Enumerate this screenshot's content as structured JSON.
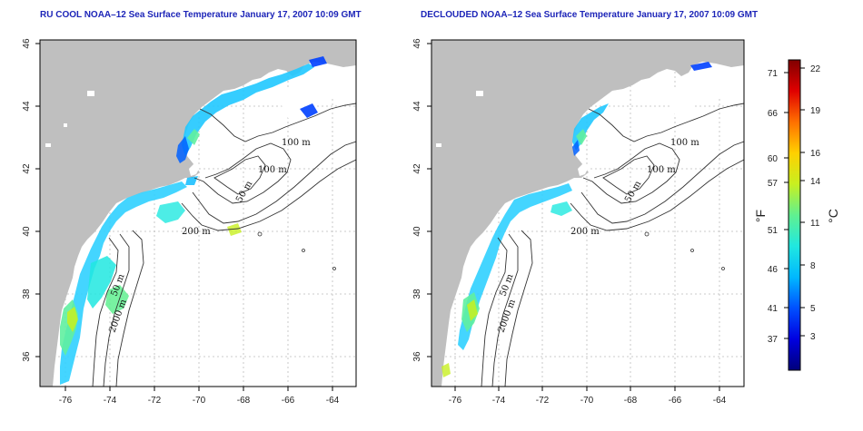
{
  "panels": [
    {
      "title": "RU COOL NOAA–12 Sea Surface Temperature January 17, 2007 10:09 GMT",
      "isobaths": [
        "100 m",
        "100 m",
        "50 m",
        "200 m",
        "50 m",
        "2000 m"
      ]
    },
    {
      "title": "DECLOUDED NOAA–12 Sea Surface Temperature January 17, 2007 10:09 GMT",
      "isobaths": [
        "100 m",
        "100 m",
        "50 m",
        "200 m",
        "50 m",
        "2000 m"
      ]
    }
  ],
  "axes": {
    "x_ticks": [
      "-76",
      "-74",
      "-72",
      "-70",
      "-68",
      "-66",
      "-64"
    ],
    "y_ticks": [
      "46",
      "44",
      "42",
      "40",
      "38",
      "36"
    ]
  },
  "colorbar": {
    "fahrenheit_unit": "°F",
    "celsius_unit": "°C",
    "fahrenheit_ticks": [
      "71",
      "66",
      "60",
      "57",
      "51",
      "46",
      "41",
      "37"
    ],
    "celsius_ticks": [
      "22",
      "19",
      "16",
      "14",
      "11",
      "8",
      "5",
      "3"
    ],
    "colors": [
      "#00007a",
      "#0000e0",
      "#0050ff",
      "#00b8ff",
      "#20e8e0",
      "#60f090",
      "#c8f020",
      "#ffd000",
      "#ff7000",
      "#e00000",
      "#800000"
    ]
  },
  "colors": {
    "land": "#bfbfbf",
    "ocean": "#ffffff",
    "grid": "#bbbbbb"
  }
}
